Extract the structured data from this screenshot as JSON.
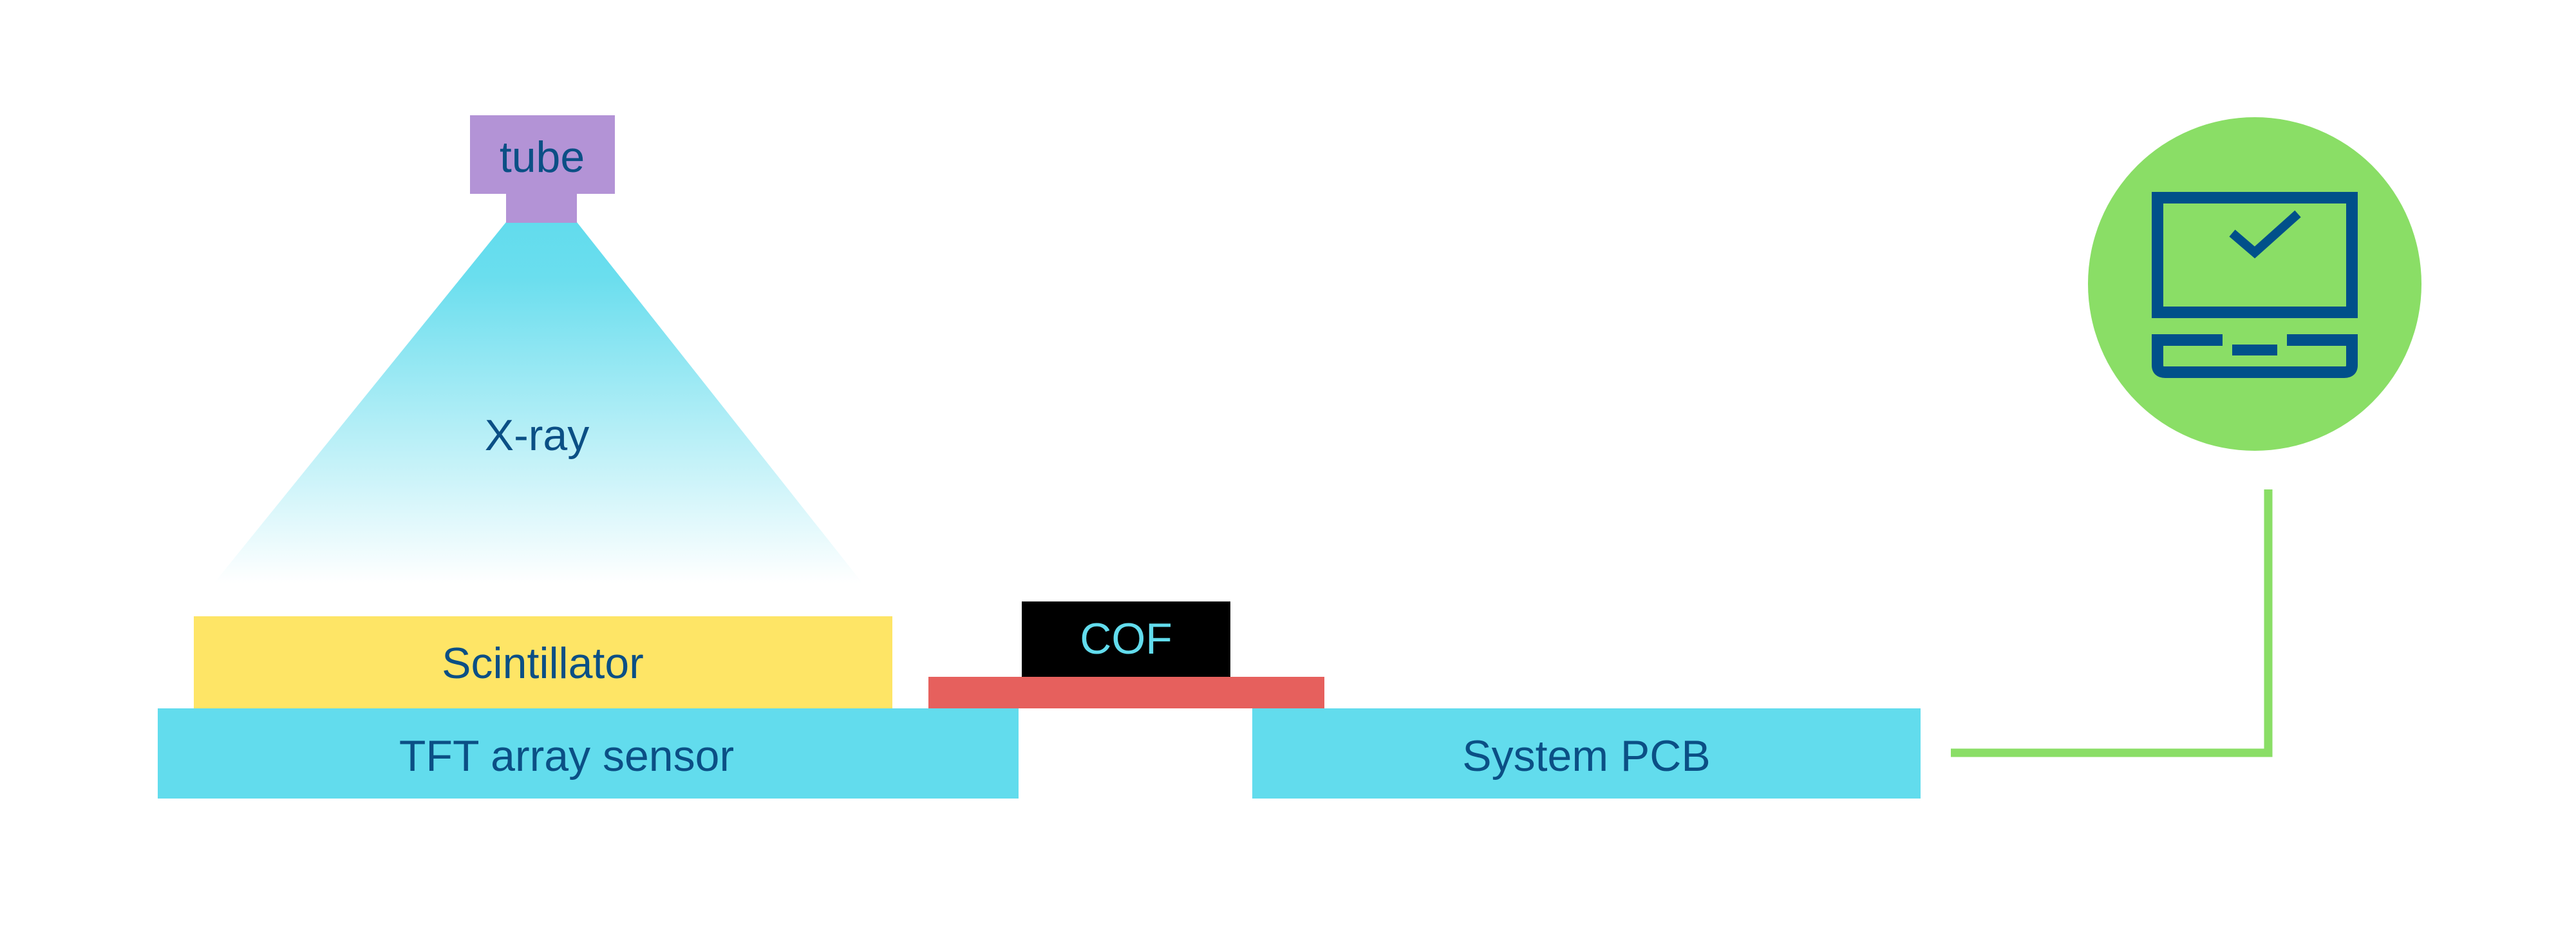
{
  "labels": {
    "tube": "tube",
    "xray": "X-ray",
    "scintillator": "Scintillator",
    "cof": "COF",
    "tft": "TFT array sensor",
    "pcb": "System PCB"
  },
  "icons": {
    "computer": "monitor-with-checkmark-icon"
  },
  "colors": {
    "tube": "#b393d6",
    "xray": "#62dced",
    "scintillator": "#fee566",
    "cof": "#000000",
    "cof_text": "#62dced",
    "flex": "#e6605d",
    "sensor_pcb": "#62dced",
    "connector": "#8ade66",
    "text": "#0b4f85"
  }
}
